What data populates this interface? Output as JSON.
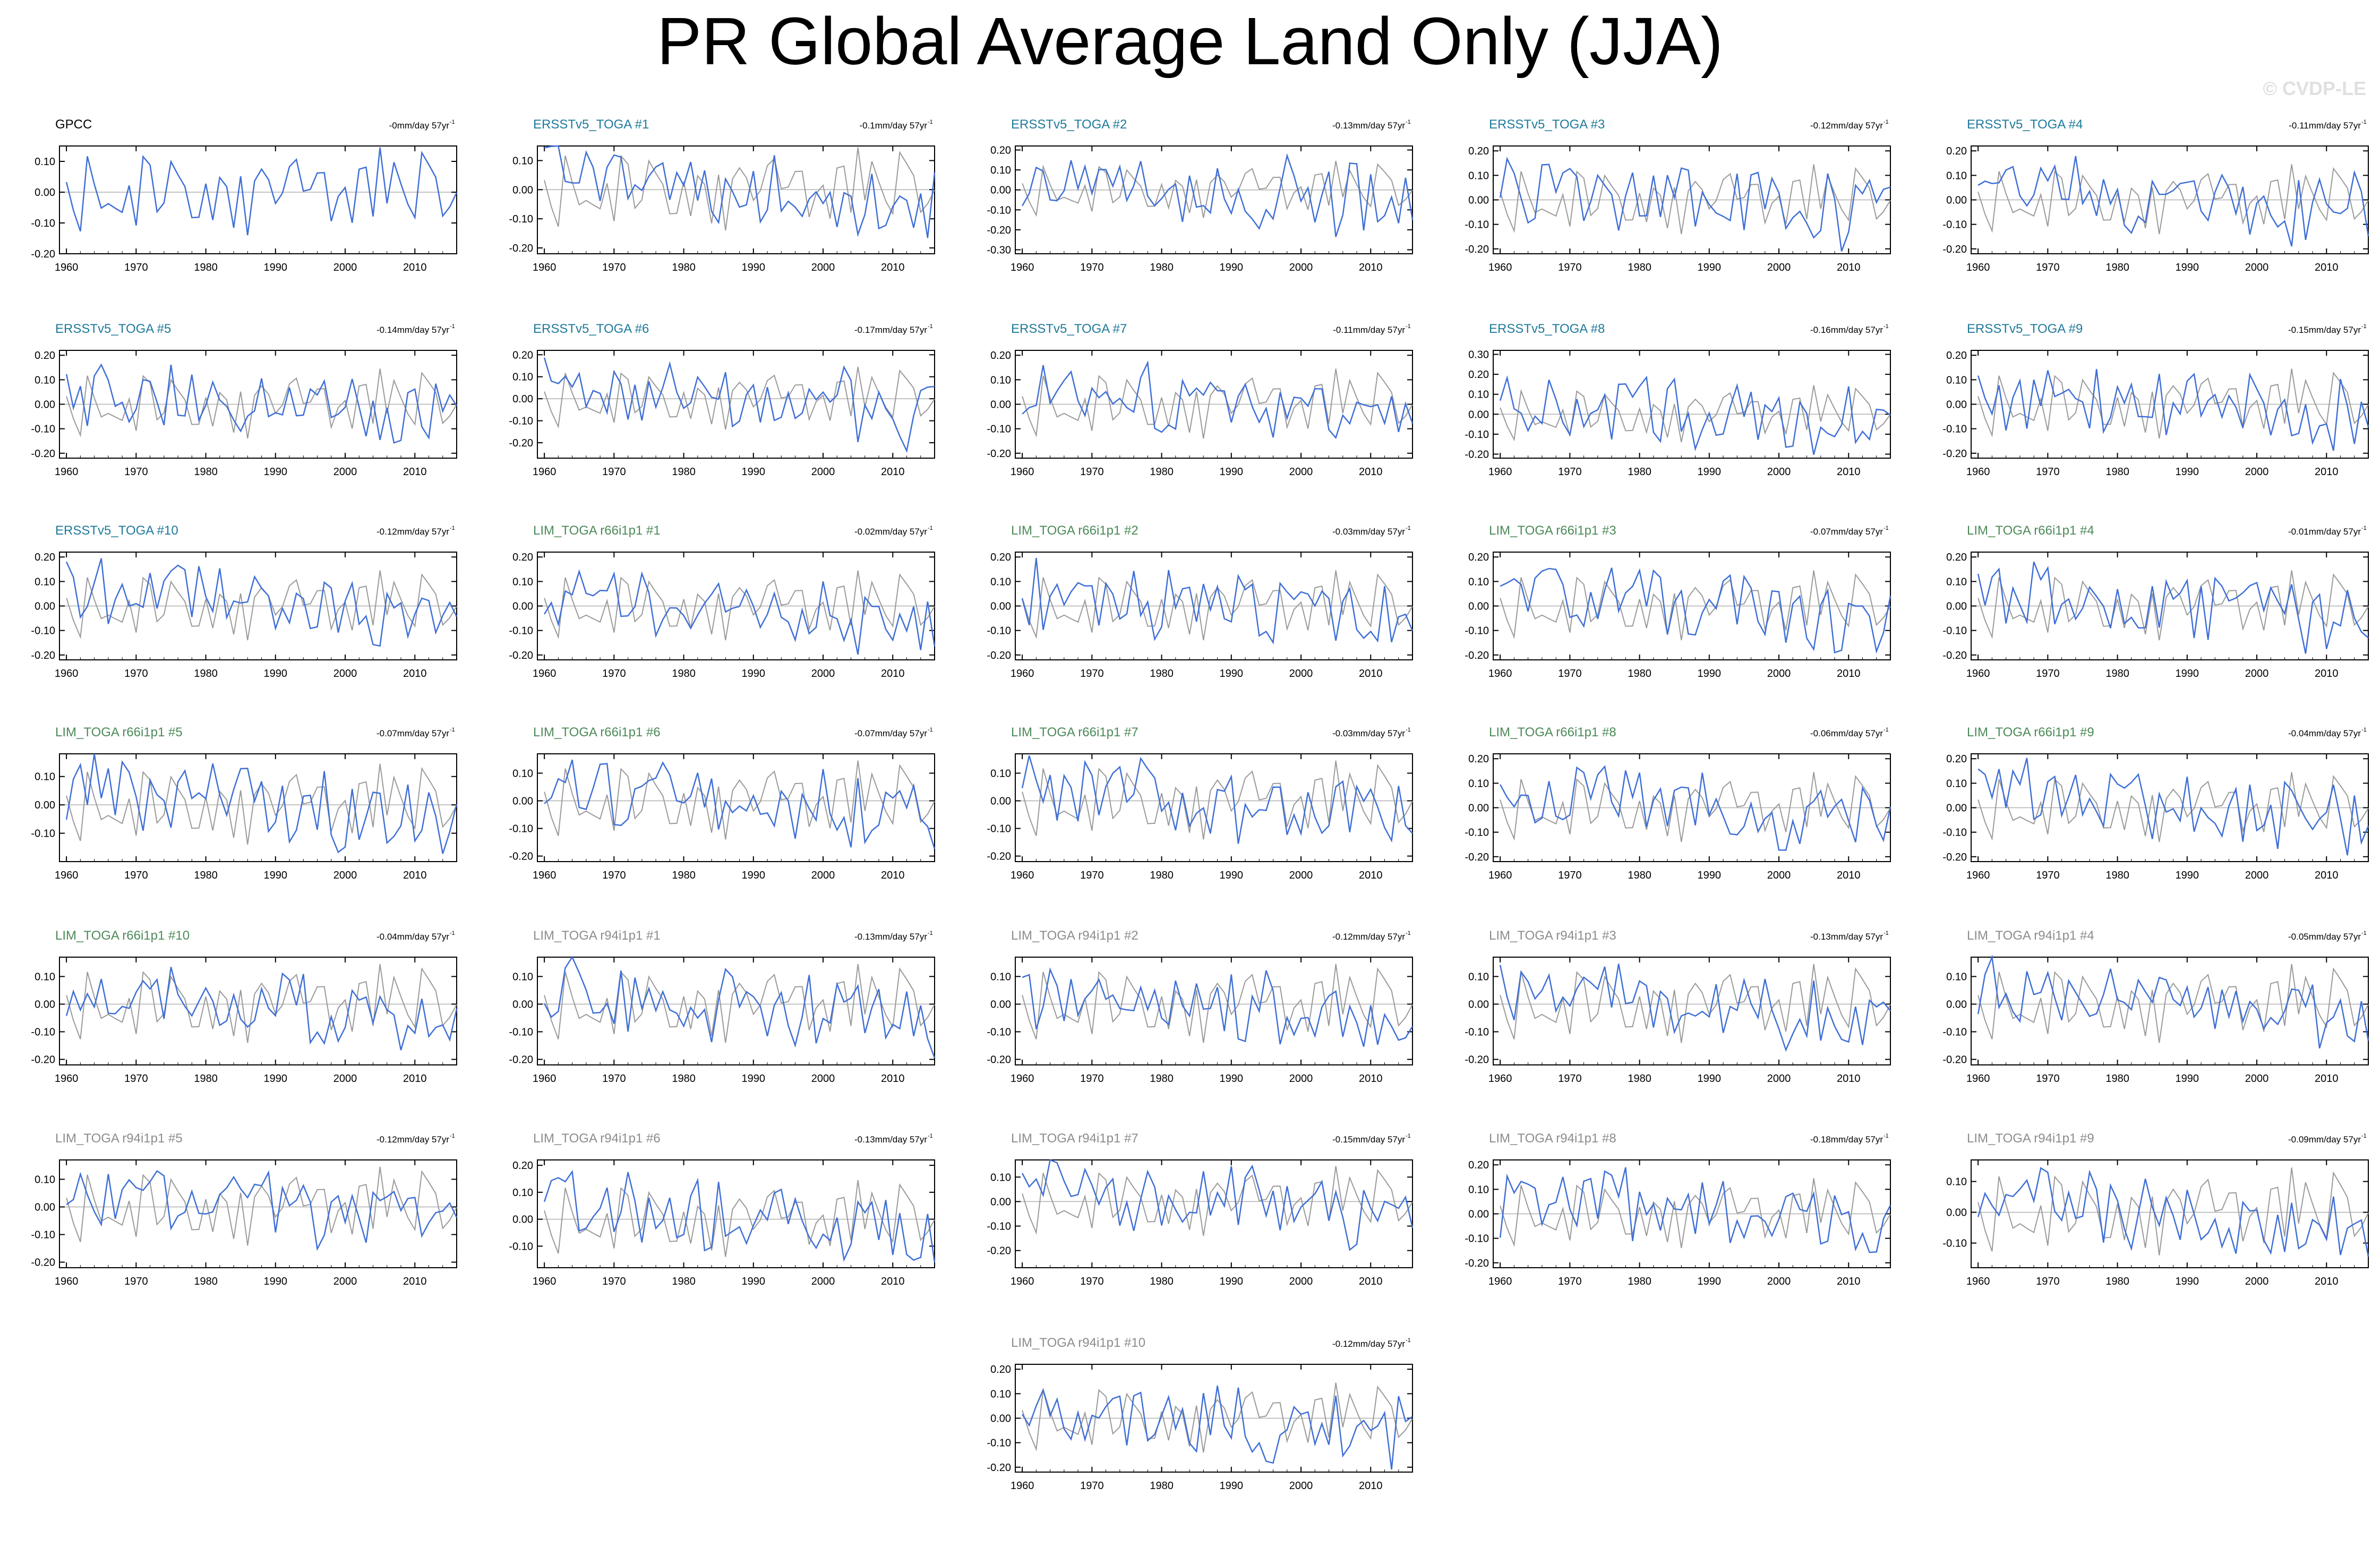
{
  "page": {
    "title": "PR Global Average Land Only (JJA)",
    "watermark": "© CVDP-LE"
  },
  "colors": {
    "model_line": "#3f6fd6",
    "obs_line": "#9a9a9a",
    "zero_line": "#b0b0b0",
    "title_obs": "#000000",
    "title_ersst": "#1f7a9a",
    "title_lim_r66": "#4c8a58",
    "title_lim_r94": "#8c8c8c"
  },
  "chart_data": [
    {
      "type": "line",
      "title": "GPCC",
      "trend": "-0mm/day 57yr",
      "trend_sup": "-1",
      "family": "obs",
      "seed": 1,
      "ylim": [
        -0.2,
        0.15
      ],
      "yticks": [
        -0.2,
        -0.1,
        0.0,
        0.1
      ],
      "xticks": [
        1960,
        1970,
        1980,
        1990,
        2000,
        2010
      ],
      "xlim": [
        1959,
        2016
      ]
    },
    {
      "type": "line",
      "title": "ERSSTv5_TOGA #1",
      "trend": "-0.1mm/day 57yr",
      "trend_sup": "-1",
      "family": "ersst",
      "seed": 2,
      "ylim": [
        -0.22,
        0.15
      ],
      "yticks": [
        -0.2,
        -0.1,
        0.0,
        0.1
      ],
      "xticks": [
        1960,
        1970,
        1980,
        1990,
        2000,
        2010
      ],
      "xlim": [
        1959,
        2016
      ]
    },
    {
      "type": "line",
      "title": "ERSSTv5_TOGA #2",
      "trend": "-0.13mm/day 57yr",
      "trend_sup": "-1",
      "family": "ersst",
      "seed": 3,
      "ylim": [
        -0.32,
        0.22
      ],
      "yticks": [
        -0.3,
        -0.2,
        -0.1,
        0.0,
        0.1,
        0.2
      ],
      "xticks": [
        1960,
        1970,
        1980,
        1990,
        2000,
        2010
      ],
      "xlim": [
        1959,
        2016
      ]
    },
    {
      "type": "line",
      "title": "ERSSTv5_TOGA #3",
      "trend": "-0.12mm/day 57yr",
      "trend_sup": "-1",
      "family": "ersst",
      "seed": 4,
      "ylim": [
        -0.22,
        0.22
      ],
      "yticks": [
        -0.2,
        -0.1,
        0.0,
        0.1,
        0.2
      ],
      "xticks": [
        1960,
        1970,
        1980,
        1990,
        2000,
        2010
      ],
      "xlim": [
        1959,
        2016
      ]
    },
    {
      "type": "line",
      "title": "ERSSTv5_TOGA #4",
      "trend": "-0.11mm/day 57yr",
      "trend_sup": "-1",
      "family": "ersst",
      "seed": 5,
      "ylim": [
        -0.22,
        0.22
      ],
      "yticks": [
        -0.2,
        -0.1,
        0.0,
        0.1,
        0.2
      ],
      "xticks": [
        1960,
        1970,
        1980,
        1990,
        2000,
        2010
      ],
      "xlim": [
        1959,
        2016
      ]
    },
    {
      "type": "line",
      "title": "ERSSTv5_TOGA #5",
      "trend": "-0.14mm/day 57yr",
      "trend_sup": "-1",
      "family": "ersst",
      "seed": 6,
      "ylim": [
        -0.22,
        0.22
      ],
      "yticks": [
        -0.2,
        -0.1,
        0.0,
        0.1,
        0.2
      ],
      "xticks": [
        1960,
        1970,
        1980,
        1990,
        2000,
        2010
      ],
      "xlim": [
        1959,
        2016
      ]
    },
    {
      "type": "line",
      "title": "ERSSTv5_TOGA #6",
      "trend": "-0.17mm/day 57yr",
      "trend_sup": "-1",
      "family": "ersst",
      "seed": 7,
      "ylim": [
        -0.27,
        0.22
      ],
      "yticks": [
        -0.2,
        -0.1,
        0.0,
        0.1,
        0.2
      ],
      "xticks": [
        1960,
        1970,
        1980,
        1990,
        2000,
        2010
      ],
      "xlim": [
        1959,
        2016
      ]
    },
    {
      "type": "line",
      "title": "ERSSTv5_TOGA #7",
      "trend": "-0.11mm/day 57yr",
      "trend_sup": "-1",
      "family": "ersst",
      "seed": 8,
      "ylim": [
        -0.22,
        0.22
      ],
      "yticks": [
        -0.2,
        -0.1,
        0.0,
        0.1,
        0.2
      ],
      "xticks": [
        1960,
        1970,
        1980,
        1990,
        2000,
        2010
      ],
      "xlim": [
        1959,
        2016
      ]
    },
    {
      "type": "line",
      "title": "ERSSTv5_TOGA #8",
      "trend": "-0.16mm/day 57yr",
      "trend_sup": "-1",
      "family": "ersst",
      "seed": 9,
      "ylim": [
        -0.22,
        0.32
      ],
      "yticks": [
        -0.2,
        -0.1,
        0.0,
        0.1,
        0.2,
        0.3
      ],
      "xticks": [
        1960,
        1970,
        1980,
        1990,
        2000,
        2010
      ],
      "xlim": [
        1959,
        2016
      ]
    },
    {
      "type": "line",
      "title": "ERSSTv5_TOGA #9",
      "trend": "-0.15mm/day 57yr",
      "trend_sup": "-1",
      "family": "ersst",
      "seed": 10,
      "ylim": [
        -0.22,
        0.22
      ],
      "yticks": [
        -0.2,
        -0.1,
        0.0,
        0.1,
        0.2
      ],
      "xticks": [
        1960,
        1970,
        1980,
        1990,
        2000,
        2010
      ],
      "xlim": [
        1959,
        2016
      ]
    },
    {
      "type": "line",
      "title": "ERSSTv5_TOGA #10",
      "trend": "-0.12mm/day 57yr",
      "trend_sup": "-1",
      "family": "ersst",
      "seed": 11,
      "ylim": [
        -0.22,
        0.22
      ],
      "yticks": [
        -0.2,
        -0.1,
        0.0,
        0.1,
        0.2
      ],
      "xticks": [
        1960,
        1970,
        1980,
        1990,
        2000,
        2010
      ],
      "xlim": [
        1959,
        2016
      ]
    },
    {
      "type": "line",
      "title": "LIM_TOGA r66i1p1 #1",
      "trend": "-0.02mm/day 57yr",
      "trend_sup": "-1",
      "family": "lim66",
      "seed": 12,
      "ylim": [
        -0.22,
        0.22
      ],
      "yticks": [
        -0.2,
        -0.1,
        0.0,
        0.1,
        0.2
      ],
      "xticks": [
        1960,
        1970,
        1980,
        1990,
        2000,
        2010
      ],
      "xlim": [
        1959,
        2016
      ]
    },
    {
      "type": "line",
      "title": "LIM_TOGA r66i1p1 #2",
      "trend": "-0.03mm/day 57yr",
      "trend_sup": "-1",
      "family": "lim66",
      "seed": 13,
      "ylim": [
        -0.22,
        0.22
      ],
      "yticks": [
        -0.2,
        -0.1,
        0.0,
        0.1,
        0.2
      ],
      "xticks": [
        1960,
        1970,
        1980,
        1990,
        2000,
        2010
      ],
      "xlim": [
        1959,
        2016
      ]
    },
    {
      "type": "line",
      "title": "LIM_TOGA r66i1p1 #3",
      "trend": "-0.07mm/day 57yr",
      "trend_sup": "-1",
      "family": "lim66",
      "seed": 14,
      "ylim": [
        -0.22,
        0.22
      ],
      "yticks": [
        -0.2,
        -0.1,
        0.0,
        0.1,
        0.2
      ],
      "xticks": [
        1960,
        1970,
        1980,
        1990,
        2000,
        2010
      ],
      "xlim": [
        1959,
        2016
      ]
    },
    {
      "type": "line",
      "title": "LIM_TOGA r66i1p1 #4",
      "trend": "-0.01mm/day 57yr",
      "trend_sup": "-1",
      "family": "lim66",
      "seed": 15,
      "ylim": [
        -0.22,
        0.22
      ],
      "yticks": [
        -0.2,
        -0.1,
        0.0,
        0.1,
        0.2
      ],
      "xticks": [
        1960,
        1970,
        1980,
        1990,
        2000,
        2010
      ],
      "xlim": [
        1959,
        2016
      ]
    },
    {
      "type": "line",
      "title": "LIM_TOGA r66i1p1 #5",
      "trend": "-0.07mm/day 57yr",
      "trend_sup": "-1",
      "family": "lim66",
      "seed": 16,
      "ylim": [
        -0.2,
        0.18
      ],
      "yticks": [
        -0.1,
        0.0,
        0.1
      ],
      "xticks": [
        1960,
        1970,
        1980,
        1990,
        2000,
        2010
      ],
      "xlim": [
        1959,
        2016
      ]
    },
    {
      "type": "line",
      "title": "LIM_TOGA r66i1p1 #6",
      "trend": "-0.07mm/day 57yr",
      "trend_sup": "-1",
      "family": "lim66",
      "seed": 17,
      "ylim": [
        -0.22,
        0.17
      ],
      "yticks": [
        -0.2,
        -0.1,
        0.0,
        0.1
      ],
      "xticks": [
        1960,
        1970,
        1980,
        1990,
        2000,
        2010
      ],
      "xlim": [
        1959,
        2016
      ]
    },
    {
      "type": "line",
      "title": "LIM_TOGA r66i1p1 #7",
      "trend": "-0.03mm/day 57yr",
      "trend_sup": "-1",
      "family": "lim66",
      "seed": 18,
      "ylim": [
        -0.22,
        0.17
      ],
      "yticks": [
        -0.2,
        -0.1,
        0.0,
        0.1
      ],
      "xticks": [
        1960,
        1970,
        1980,
        1990,
        2000,
        2010
      ],
      "xlim": [
        1959,
        2016
      ]
    },
    {
      "type": "line",
      "title": "LIM_TOGA r66i1p1 #8",
      "trend": "-0.06mm/day 57yr",
      "trend_sup": "-1",
      "family": "lim66",
      "seed": 19,
      "ylim": [
        -0.22,
        0.22
      ],
      "yticks": [
        -0.2,
        -0.1,
        0.0,
        0.1,
        0.2
      ],
      "xticks": [
        1960,
        1970,
        1980,
        1990,
        2000,
        2010
      ],
      "xlim": [
        1959,
        2016
      ]
    },
    {
      "type": "line",
      "title": "LIM_TOGA r66i1p1 #9",
      "trend": "-0.04mm/day 57yr",
      "trend_sup": "-1",
      "family": "lim66",
      "seed": 20,
      "ylim": [
        -0.22,
        0.22
      ],
      "yticks": [
        -0.2,
        -0.1,
        0.0,
        0.1,
        0.2
      ],
      "xticks": [
        1960,
        1970,
        1980,
        1990,
        2000,
        2010
      ],
      "xlim": [
        1959,
        2016
      ]
    },
    {
      "type": "line",
      "title": "LIM_TOGA r66i1p1 #10",
      "trend": "-0.04mm/day 57yr",
      "trend_sup": "-1",
      "family": "lim66",
      "seed": 21,
      "ylim": [
        -0.22,
        0.17
      ],
      "yticks": [
        -0.2,
        -0.1,
        0.0,
        0.1
      ],
      "xticks": [
        1960,
        1970,
        1980,
        1990,
        2000,
        2010
      ],
      "xlim": [
        1959,
        2016
      ]
    },
    {
      "type": "line",
      "title": "LIM_TOGA r94i1p1 #1",
      "trend": "-0.13mm/day 57yr",
      "trend_sup": "-1",
      "family": "lim94",
      "seed": 22,
      "ylim": [
        -0.22,
        0.17
      ],
      "yticks": [
        -0.2,
        -0.1,
        0.0,
        0.1
      ],
      "xticks": [
        1960,
        1970,
        1980,
        1990,
        2000,
        2010
      ],
      "xlim": [
        1959,
        2016
      ]
    },
    {
      "type": "line",
      "title": "LIM_TOGA r94i1p1 #2",
      "trend": "-0.12mm/day 57yr",
      "trend_sup": "-1",
      "family": "lim94",
      "seed": 23,
      "ylim": [
        -0.22,
        0.17
      ],
      "yticks": [
        -0.2,
        -0.1,
        0.0,
        0.1
      ],
      "xticks": [
        1960,
        1970,
        1980,
        1990,
        2000,
        2010
      ],
      "xlim": [
        1959,
        2016
      ]
    },
    {
      "type": "line",
      "title": "LIM_TOGA r94i1p1 #3",
      "trend": "-0.13mm/day 57yr",
      "trend_sup": "-1",
      "family": "lim94",
      "seed": 24,
      "ylim": [
        -0.22,
        0.17
      ],
      "yticks": [
        -0.2,
        -0.1,
        0.0,
        0.1
      ],
      "xticks": [
        1960,
        1970,
        1980,
        1990,
        2000,
        2010
      ],
      "xlim": [
        1959,
        2016
      ]
    },
    {
      "type": "line",
      "title": "LIM_TOGA r94i1p1 #4",
      "trend": "-0.05mm/day 57yr",
      "trend_sup": "-1",
      "family": "lim94",
      "seed": 25,
      "ylim": [
        -0.22,
        0.17
      ],
      "yticks": [
        -0.2,
        -0.1,
        0.0,
        0.1
      ],
      "xticks": [
        1960,
        1970,
        1980,
        1990,
        2000,
        2010
      ],
      "xlim": [
        1959,
        2016
      ]
    },
    {
      "type": "line",
      "title": "LIM_TOGA r94i1p1 #5",
      "trend": "-0.12mm/day 57yr",
      "trend_sup": "-1",
      "family": "lim94",
      "seed": 26,
      "ylim": [
        -0.22,
        0.17
      ],
      "yticks": [
        -0.2,
        -0.1,
        0.0,
        0.1
      ],
      "xticks": [
        1960,
        1970,
        1980,
        1990,
        2000,
        2010
      ],
      "xlim": [
        1959,
        2016
      ]
    },
    {
      "type": "line",
      "title": "LIM_TOGA r94i1p1 #6",
      "trend": "-0.13mm/day 57yr",
      "trend_sup": "-1",
      "family": "lim94",
      "seed": 27,
      "ylim": [
        -0.18,
        0.22
      ],
      "yticks": [
        -0.1,
        0.0,
        0.1,
        0.2
      ],
      "xticks": [
        1960,
        1970,
        1980,
        1990,
        2000,
        2010
      ],
      "xlim": [
        1959,
        2016
      ]
    },
    {
      "type": "line",
      "title": "LIM_TOGA r94i1p1 #7",
      "trend": "-0.15mm/day 57yr",
      "trend_sup": "-1",
      "family": "lim94",
      "seed": 28,
      "ylim": [
        -0.27,
        0.17
      ],
      "yticks": [
        -0.2,
        -0.1,
        0.0,
        0.1
      ],
      "xticks": [
        1960,
        1970,
        1980,
        1990,
        2000,
        2010
      ],
      "xlim": [
        1959,
        2016
      ]
    },
    {
      "type": "line",
      "title": "LIM_TOGA r94i1p1 #8",
      "trend": "-0.18mm/day 57yr",
      "trend_sup": "-1",
      "family": "lim94",
      "seed": 29,
      "ylim": [
        -0.22,
        0.22
      ],
      "yticks": [
        -0.2,
        -0.1,
        0.0,
        0.1,
        0.2
      ],
      "xticks": [
        1960,
        1970,
        1980,
        1990,
        2000,
        2010
      ],
      "xlim": [
        1959,
        2016
      ]
    },
    {
      "type": "line",
      "title": "LIM_TOGA r94i1p1 #9",
      "trend": "-0.09mm/day 57yr",
      "trend_sup": "-1",
      "family": "lim94",
      "seed": 30,
      "ylim": [
        -0.18,
        0.17
      ],
      "yticks": [
        -0.1,
        0.0,
        0.1
      ],
      "xticks": [
        1960,
        1970,
        1980,
        1990,
        2000,
        2010
      ],
      "xlim": [
        1959,
        2016
      ]
    },
    {
      "type": "line",
      "title": "LIM_TOGA r94i1p1 #10",
      "trend": "-0.12mm/day 57yr",
      "trend_sup": "-1",
      "family": "lim94",
      "seed": 31,
      "ylim": [
        -0.22,
        0.22
      ],
      "yticks": [
        -0.2,
        -0.1,
        0.0,
        0.1,
        0.2
      ],
      "xticks": [
        1960,
        1970,
        1980,
        1990,
        2000,
        2010
      ],
      "xlim": [
        1959,
        2016
      ]
    }
  ]
}
